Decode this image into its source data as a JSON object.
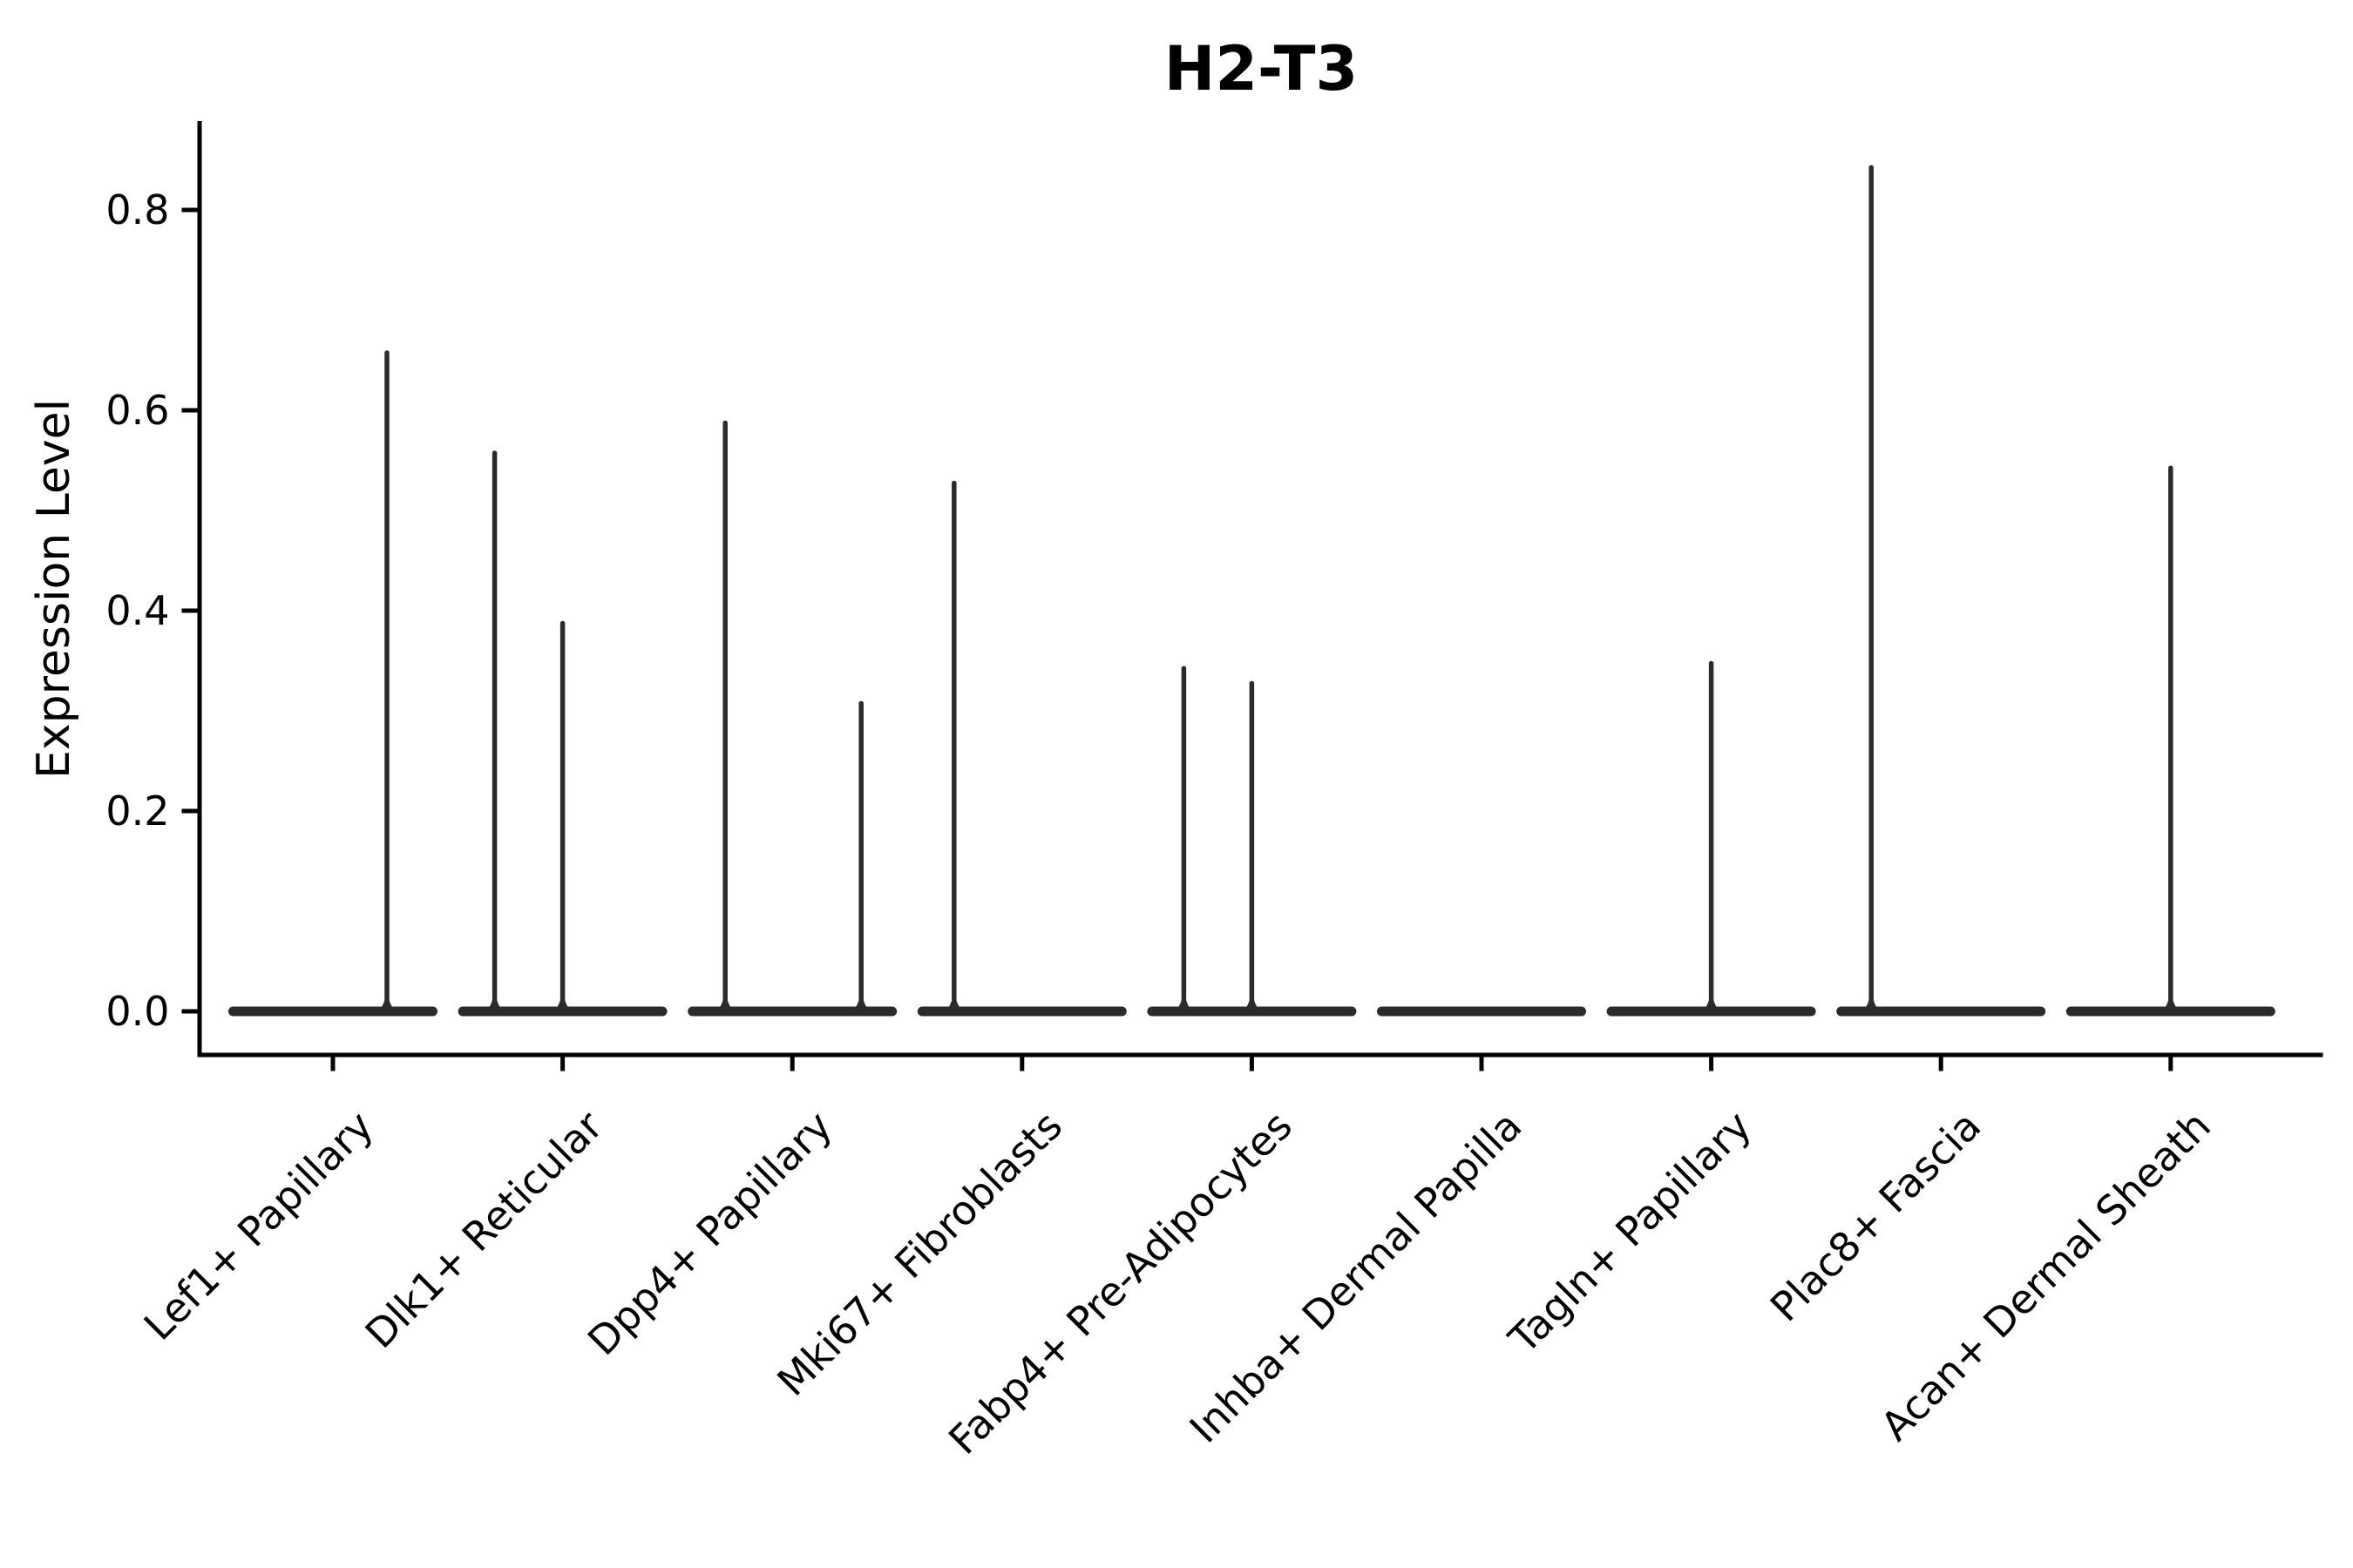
{
  "chart_data": {
    "type": "violin",
    "title": "H2-T3",
    "ylabel": "Expression Level",
    "xlabel": "",
    "ylim": [
      -0.043,
      0.887
    ],
    "yticks": [
      0.0,
      0.2,
      0.4,
      0.6,
      0.8
    ],
    "grid": false,
    "legend": null,
    "description": "Needle-like violins: each category has a wide flat density bar at expression 0 plus thin vertical spikes marking the few non-zero expressing cells",
    "violins": [
      {
        "category": "Lef1+ Papillary",
        "base_value": 0.0,
        "spikes": [
          {
            "value": 0.66,
            "x_offset": 62
          }
        ]
      },
      {
        "category": "Dlk1+ Reticular",
        "base_value": 0.0,
        "spikes": [
          {
            "value": 0.56,
            "x_offset": -78
          },
          {
            "value": 0.39,
            "x_offset": 0
          }
        ]
      },
      {
        "category": "Dpp4+ Papillary",
        "base_value": 0.0,
        "spikes": [
          {
            "value": 0.59,
            "x_offset": -77
          },
          {
            "value": 0.31,
            "x_offset": 79
          }
        ]
      },
      {
        "category": "Mki67+ Fibroblasts",
        "base_value": 0.0,
        "spikes": [
          {
            "value": 0.53,
            "x_offset": -78
          }
        ]
      },
      {
        "category": "Fabp4+ Pre-Adipocytes",
        "base_value": 0.0,
        "spikes": [
          {
            "value": 0.345,
            "x_offset": -78
          },
          {
            "value": 0.33,
            "x_offset": 0
          }
        ]
      },
      {
        "category": "Inhba+ Dermal Papilla",
        "base_value": 0.0,
        "spikes": []
      },
      {
        "category": "Tagln+ Papillary",
        "base_value": 0.0,
        "spikes": [
          {
            "value": 0.35,
            "x_offset": 0
          }
        ]
      },
      {
        "category": "Plac8+ Fascia",
        "base_value": 0.0,
        "spikes": [
          {
            "value": 0.845,
            "x_offset": -80
          }
        ]
      },
      {
        "category": "Acan+ Dermal Sheath",
        "base_value": 0.0,
        "spikes": [
          {
            "value": 0.545,
            "x_offset": 0
          }
        ]
      }
    ],
    "style": {
      "violin_color": "#2b2b2b",
      "axis_color": "#000000",
      "text_color": "#000000",
      "background": "#ffffff"
    }
  }
}
